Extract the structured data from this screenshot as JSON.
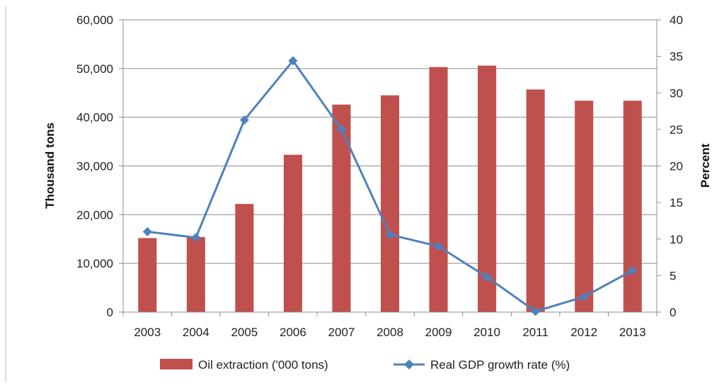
{
  "chart_data": {
    "type": "bar",
    "categories": [
      "2003",
      "2004",
      "2005",
      "2006",
      "2007",
      "2008",
      "2009",
      "2010",
      "2011",
      "2012",
      "2013"
    ],
    "series": [
      {
        "name": "Oil extraction ('000 tons)",
        "kind": "bar",
        "axis": "left",
        "color": "#c0504d",
        "values": [
          15200,
          15400,
          22200,
          32300,
          42600,
          44500,
          50300,
          50600,
          45700,
          43400,
          43400
        ]
      },
      {
        "name": "Real GDP growth rate (%)",
        "kind": "line",
        "axis": "right",
        "color": "#4f81bd",
        "values": [
          11.0,
          10.2,
          26.3,
          34.4,
          25.0,
          10.6,
          9.0,
          4.8,
          0.1,
          2.1,
          5.7
        ]
      }
    ],
    "ylabel": "Thousand tons",
    "y2label": "Percent",
    "ylim": [
      0,
      60000
    ],
    "y2lim": [
      0,
      40
    ],
    "yticks": [
      "0",
      "10,000",
      "20,000",
      "30,000",
      "40,000",
      "50,000",
      "60,000"
    ],
    "y2ticks": [
      "0",
      "5",
      "10",
      "15",
      "20",
      "25",
      "30",
      "35",
      "40"
    ],
    "grid": true,
    "legend_position": "bottom"
  }
}
